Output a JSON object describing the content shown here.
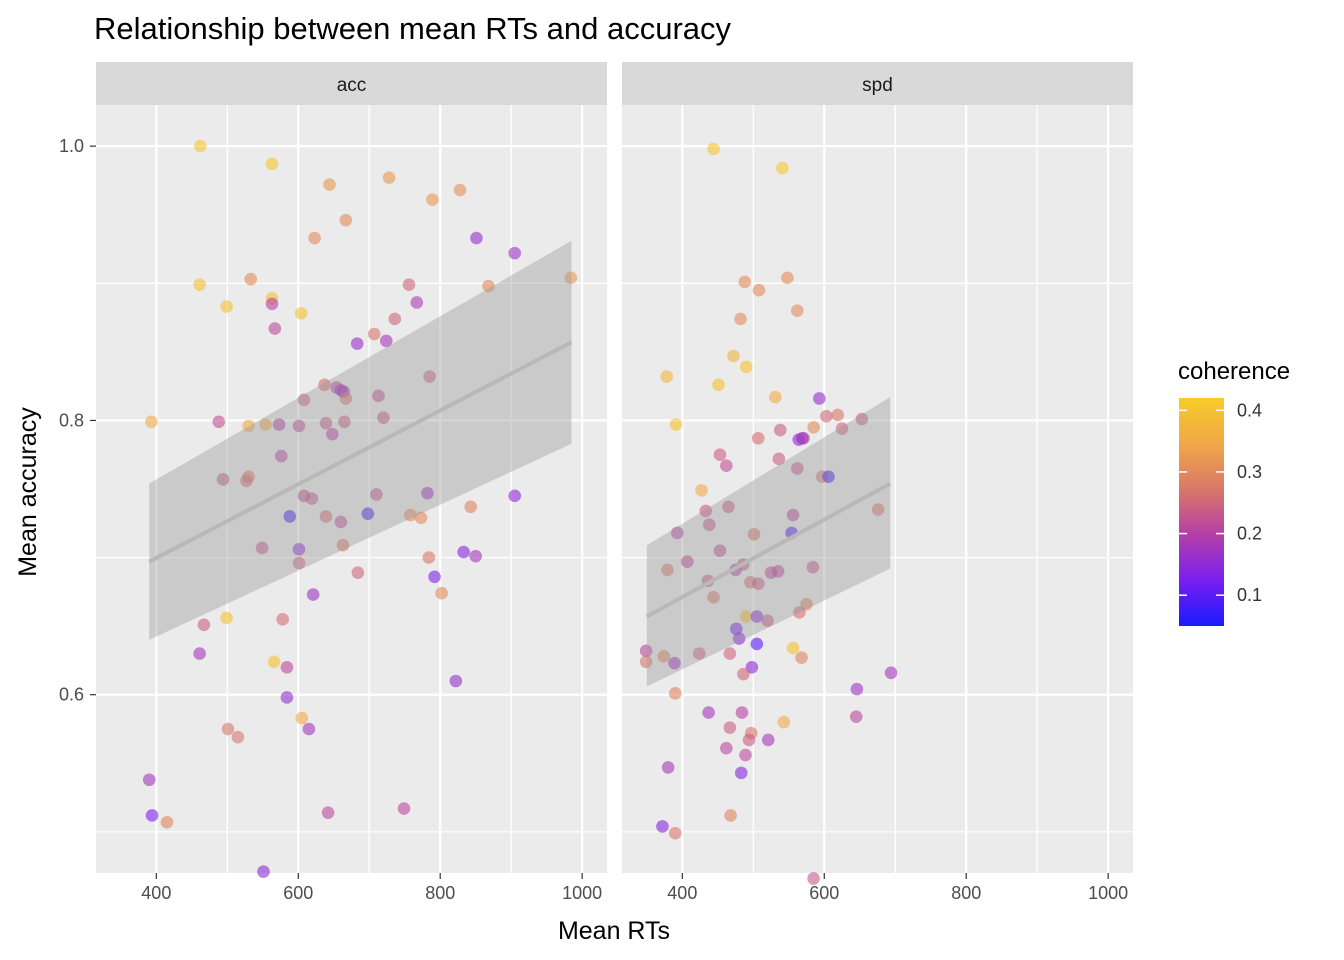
{
  "chart_data": {
    "type": "scatter",
    "title": "Relationship between mean RTs and accuracy",
    "xlabel": "Mean RTs",
    "ylabel": "Mean accuracy",
    "xlim": [
      315,
      1035
    ],
    "ylim": [
      0.47,
      1.03
    ],
    "x_ticks": [
      400,
      600,
      800,
      1000
    ],
    "x_tick_labels": [
      "400",
      "600",
      "800",
      "1000"
    ],
    "y_ticks": [
      0.6,
      0.8,
      1.0
    ],
    "y_tick_labels": [
      "0.6",
      "0.8",
      "1.0"
    ],
    "grid": true,
    "legend": {
      "title": "coherence",
      "placement": "right",
      "min": 0.05,
      "max": 0.42,
      "ticks": [
        0.1,
        0.2,
        0.3,
        0.4
      ],
      "tick_labels": [
        "0.1",
        "0.2",
        "0.3",
        "0.4"
      ],
      "colors": [
        "#1a1aff",
        "#7a1ff0",
        "#b43fa8",
        "#d97868",
        "#f0a848",
        "#f7cc28"
      ]
    },
    "colors": {
      "panel_background": "#ebebeb",
      "strip_background": "#d9d9d9",
      "grid": "#ffffff",
      "smooth_line": "#b8b8b8",
      "smooth_ribbon": "#999999"
    },
    "panels": [
      {
        "label": "acc",
        "smooth": {
          "x": [
            390,
            985
          ],
          "y": [
            0.697,
            0.857
          ],
          "lower": [
            0.64,
            0.783
          ],
          "upper": [
            0.754,
            0.931
          ]
        },
        "points": [
          [
            462,
            1.0,
            0.41
          ],
          [
            563,
            0.987,
            0.41
          ],
          [
            644,
            0.972,
            0.32
          ],
          [
            728,
            0.977,
            0.32
          ],
          [
            789,
            0.961,
            0.32
          ],
          [
            828,
            0.968,
            0.31
          ],
          [
            667,
            0.946,
            0.3
          ],
          [
            623,
            0.933,
            0.3
          ],
          [
            851,
            0.933,
            0.16
          ],
          [
            905,
            0.922,
            0.17
          ],
          [
            461,
            0.899,
            0.4
          ],
          [
            533,
            0.903,
            0.3
          ],
          [
            563,
            0.889,
            0.4
          ],
          [
            563,
            0.885,
            0.2
          ],
          [
            604,
            0.878,
            0.4
          ],
          [
            499,
            0.883,
            0.4
          ],
          [
            756,
            0.899,
            0.25
          ],
          [
            868,
            0.898,
            0.3
          ],
          [
            984,
            0.904,
            0.32
          ],
          [
            567,
            0.867,
            0.21
          ],
          [
            767,
            0.886,
            0.19
          ],
          [
            736,
            0.874,
            0.25
          ],
          [
            707,
            0.863,
            0.27
          ],
          [
            683,
            0.856,
            0.16
          ],
          [
            724,
            0.858,
            0.18
          ],
          [
            637,
            0.826,
            0.26
          ],
          [
            785,
            0.832,
            0.25
          ],
          [
            654,
            0.824,
            0.2
          ],
          [
            660,
            0.822,
            0.19
          ],
          [
            664,
            0.821,
            0.17
          ],
          [
            667,
            0.816,
            0.27
          ],
          [
            608,
            0.815,
            0.25
          ],
          [
            713,
            0.818,
            0.22
          ],
          [
            393,
            0.799,
            0.35
          ],
          [
            488,
            0.799,
            0.22
          ],
          [
            530,
            0.796,
            0.35
          ],
          [
            554,
            0.797,
            0.35
          ],
          [
            573,
            0.797,
            0.2
          ],
          [
            601,
            0.796,
            0.22
          ],
          [
            639,
            0.798,
            0.23
          ],
          [
            665,
            0.799,
            0.24
          ],
          [
            648,
            0.79,
            0.2
          ],
          [
            720,
            0.802,
            0.23
          ],
          [
            576,
            0.774,
            0.21
          ],
          [
            494,
            0.757,
            0.23
          ],
          [
            530,
            0.759,
            0.28
          ],
          [
            527,
            0.756,
            0.26
          ],
          [
            608,
            0.745,
            0.22
          ],
          [
            619,
            0.743,
            0.23
          ],
          [
            710,
            0.746,
            0.23
          ],
          [
            782,
            0.747,
            0.17
          ],
          [
            843,
            0.737,
            0.29
          ],
          [
            905,
            0.745,
            0.15
          ],
          [
            588,
            0.73,
            0.08
          ],
          [
            639,
            0.73,
            0.26
          ],
          [
            660,
            0.726,
            0.22
          ],
          [
            698,
            0.732,
            0.08
          ],
          [
            758,
            0.731,
            0.3
          ],
          [
            773,
            0.729,
            0.3
          ],
          [
            549,
            0.707,
            0.23
          ],
          [
            601,
            0.706,
            0.15
          ],
          [
            663,
            0.709,
            0.27
          ],
          [
            784,
            0.7,
            0.27
          ],
          [
            833,
            0.704,
            0.14
          ],
          [
            850,
            0.701,
            0.18
          ],
          [
            601,
            0.696,
            0.25
          ],
          [
            684,
            0.689,
            0.25
          ],
          [
            792,
            0.686,
            0.13
          ],
          [
            621,
            0.673,
            0.17
          ],
          [
            802,
            0.674,
            0.3
          ],
          [
            467,
            0.651,
            0.24
          ],
          [
            499,
            0.656,
            0.4
          ],
          [
            578,
            0.655,
            0.26
          ],
          [
            461,
            0.63,
            0.18
          ],
          [
            566,
            0.624,
            0.4
          ],
          [
            584,
            0.62,
            0.21
          ],
          [
            822,
            0.61,
            0.16
          ],
          [
            584,
            0.598,
            0.16
          ],
          [
            605,
            0.583,
            0.35
          ],
          [
            501,
            0.575,
            0.27
          ],
          [
            515,
            0.569,
            0.27
          ],
          [
            615,
            0.575,
            0.18
          ],
          [
            390,
            0.538,
            0.18
          ],
          [
            394,
            0.512,
            0.13
          ],
          [
            415,
            0.507,
            0.29
          ],
          [
            642,
            0.514,
            0.21
          ],
          [
            749,
            0.517,
            0.21
          ],
          [
            551,
            0.471,
            0.15
          ]
        ]
      },
      {
        "label": "spd",
        "smooth": {
          "x": [
            350,
            693
          ],
          "y": [
            0.657,
            0.754
          ],
          "lower": [
            0.606,
            0.692
          ],
          "upper": [
            0.709,
            0.817
          ]
        },
        "points": [
          [
            444,
            0.998,
            0.41
          ],
          [
            541,
            0.984,
            0.41
          ],
          [
            488,
            0.901,
            0.3
          ],
          [
            508,
            0.895,
            0.3
          ],
          [
            548,
            0.904,
            0.3
          ],
          [
            482,
            0.874,
            0.3
          ],
          [
            562,
            0.88,
            0.3
          ],
          [
            472,
            0.847,
            0.37
          ],
          [
            490,
            0.839,
            0.4
          ],
          [
            378,
            0.832,
            0.37
          ],
          [
            451,
            0.826,
            0.4
          ],
          [
            531,
            0.817,
            0.35
          ],
          [
            593,
            0.816,
            0.16
          ],
          [
            603,
            0.803,
            0.25
          ],
          [
            619,
            0.804,
            0.27
          ],
          [
            653,
            0.801,
            0.24
          ],
          [
            391,
            0.797,
            0.4
          ],
          [
            538,
            0.793,
            0.24
          ],
          [
            585,
            0.795,
            0.3
          ],
          [
            625,
            0.794,
            0.25
          ],
          [
            507,
            0.787,
            0.26
          ],
          [
            564,
            0.786,
            0.15
          ],
          [
            571,
            0.787,
            0.23
          ],
          [
            569,
            0.787,
            0.16
          ],
          [
            453,
            0.775,
            0.24
          ],
          [
            536,
            0.772,
            0.24
          ],
          [
            462,
            0.767,
            0.22
          ],
          [
            562,
            0.765,
            0.23
          ],
          [
            597,
            0.759,
            0.27
          ],
          [
            606,
            0.759,
            0.08
          ],
          [
            427,
            0.749,
            0.35
          ],
          [
            433,
            0.734,
            0.24
          ],
          [
            465,
            0.737,
            0.24
          ],
          [
            676,
            0.735,
            0.27
          ],
          [
            438,
            0.724,
            0.23
          ],
          [
            556,
            0.731,
            0.21
          ],
          [
            554,
            0.718,
            0.09
          ],
          [
            393,
            0.718,
            0.21
          ],
          [
            501,
            0.717,
            0.27
          ],
          [
            453,
            0.705,
            0.22
          ],
          [
            407,
            0.697,
            0.21
          ],
          [
            379,
            0.691,
            0.27
          ],
          [
            475,
            0.691,
            0.2
          ],
          [
            486,
            0.695,
            0.24
          ],
          [
            525,
            0.689,
            0.21
          ],
          [
            535,
            0.69,
            0.21
          ],
          [
            584,
            0.693,
            0.23
          ],
          [
            436,
            0.683,
            0.24
          ],
          [
            496,
            0.682,
            0.26
          ],
          [
            507,
            0.681,
            0.24
          ],
          [
            444,
            0.671,
            0.27
          ],
          [
            575,
            0.666,
            0.29
          ],
          [
            565,
            0.66,
            0.26
          ],
          [
            490,
            0.657,
            0.4
          ],
          [
            505,
            0.657,
            0.15
          ],
          [
            520,
            0.654,
            0.23
          ],
          [
            476,
            0.648,
            0.12
          ],
          [
            480,
            0.641,
            0.15
          ],
          [
            505,
            0.637,
            0.1
          ],
          [
            556,
            0.634,
            0.4
          ],
          [
            349,
            0.632,
            0.21
          ],
          [
            349,
            0.624,
            0.27
          ],
          [
            374,
            0.628,
            0.29
          ],
          [
            424,
            0.63,
            0.25
          ],
          [
            467,
            0.63,
            0.25
          ],
          [
            568,
            0.627,
            0.29
          ],
          [
            389,
            0.623,
            0.17
          ],
          [
            498,
            0.62,
            0.15
          ],
          [
            694,
            0.616,
            0.18
          ],
          [
            486,
            0.615,
            0.25
          ],
          [
            390,
            0.601,
            0.29
          ],
          [
            646,
            0.604,
            0.17
          ],
          [
            437,
            0.587,
            0.18
          ],
          [
            484,
            0.587,
            0.2
          ],
          [
            645,
            0.584,
            0.21
          ],
          [
            543,
            0.58,
            0.35
          ],
          [
            467,
            0.576,
            0.24
          ],
          [
            497,
            0.572,
            0.27
          ],
          [
            521,
            0.567,
            0.18
          ],
          [
            494,
            0.567,
            0.24
          ],
          [
            462,
            0.561,
            0.21
          ],
          [
            489,
            0.556,
            0.21
          ],
          [
            380,
            0.547,
            0.18
          ],
          [
            483,
            0.543,
            0.14
          ],
          [
            468,
            0.512,
            0.29
          ],
          [
            372,
            0.504,
            0.14
          ],
          [
            390,
            0.499,
            0.27
          ],
          [
            585,
            0.466,
            0.23
          ]
        ]
      }
    ]
  }
}
